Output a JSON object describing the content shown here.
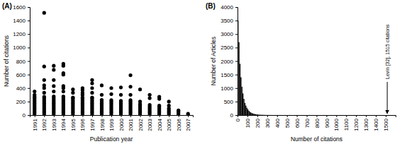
{
  "chart_data": [
    {
      "type": "scatter",
      "title": "(A)",
      "x_label": "Publication year",
      "y_label": "Number of citations",
      "color": "#000000",
      "marker": "circle",
      "xlim": [
        1990.5,
        2007.5
      ],
      "xticks": [
        1991,
        1992,
        1993,
        1994,
        1995,
        1996,
        1997,
        1998,
        1999,
        2000,
        2001,
        2002,
        2003,
        2004,
        2005,
        2006,
        2007
      ],
      "ylim": [
        0,
        1600
      ],
      "yticks": [
        0,
        200,
        400,
        600,
        800,
        1000,
        1200,
        1400,
        1600
      ],
      "x": [
        1991,
        1991,
        1991,
        1991,
        1991,
        1991,
        1991,
        1991,
        1991,
        1991,
        1991,
        1991,
        1991,
        1991,
        1992,
        1992,
        1992,
        1992,
        1992,
        1992,
        1992,
        1992,
        1992,
        1992,
        1992,
        1992,
        1992,
        1992,
        1992,
        1992,
        1992,
        1992,
        1993,
        1993,
        1993,
        1993,
        1993,
        1993,
        1993,
        1993,
        1993,
        1993,
        1993,
        1993,
        1993,
        1993,
        1993,
        1993,
        1993,
        1994,
        1994,
        1994,
        1994,
        1994,
        1994,
        1994,
        1994,
        1994,
        1994,
        1994,
        1994,
        1994,
        1994,
        1994,
        1994,
        1994,
        1994,
        1994,
        1995,
        1995,
        1995,
        1995,
        1995,
        1995,
        1995,
        1995,
        1995,
        1995,
        1995,
        1995,
        1995,
        1995,
        1996,
        1996,
        1996,
        1996,
        1996,
        1996,
        1996,
        1996,
        1996,
        1996,
        1996,
        1996,
        1996,
        1996,
        1996,
        1996,
        1997,
        1997,
        1997,
        1997,
        1997,
        1997,
        1997,
        1997,
        1997,
        1997,
        1997,
        1997,
        1997,
        1997,
        1997,
        1997,
        1998,
        1998,
        1998,
        1998,
        1998,
        1998,
        1998,
        1998,
        1998,
        1998,
        1998,
        1998,
        1999,
        1999,
        1999,
        1999,
        1999,
        1999,
        1999,
        1999,
        1999,
        1999,
        1999,
        1999,
        2000,
        2000,
        2000,
        2000,
        2000,
        2000,
        2000,
        2000,
        2000,
        2000,
        2000,
        2000,
        2001,
        2001,
        2001,
        2001,
        2001,
        2001,
        2001,
        2001,
        2001,
        2001,
        2001,
        2001,
        2001,
        2002,
        2002,
        2002,
        2002,
        2002,
        2002,
        2002,
        2002,
        2002,
        2002,
        2003,
        2003,
        2003,
        2003,
        2003,
        2003,
        2003,
        2003,
        2003,
        2004,
        2004,
        2004,
        2004,
        2004,
        2004,
        2004,
        2004,
        2004,
        2005,
        2005,
        2005,
        2005,
        2005,
        2005,
        2005,
        2006,
        2006,
        2006,
        2006,
        2007,
        2007
      ],
      "values": [
        0,
        25,
        50,
        75,
        100,
        125,
        150,
        175,
        200,
        225,
        250,
        270,
        300,
        350,
        0,
        25,
        50,
        75,
        100,
        125,
        150,
        175,
        200,
        225,
        250,
        270,
        330,
        400,
        440,
        520,
        720,
        1515,
        0,
        25,
        50,
        75,
        100,
        125,
        150,
        175,
        200,
        225,
        250,
        275,
        350,
        430,
        520,
        670,
        730,
        0,
        25,
        50,
        75,
        100,
        125,
        150,
        175,
        200,
        225,
        250,
        275,
        350,
        400,
        430,
        600,
        620,
        730,
        760,
        0,
        25,
        50,
        75,
        100,
        125,
        150,
        175,
        200,
        225,
        250,
        260,
        330,
        380,
        0,
        25,
        50,
        75,
        100,
        125,
        150,
        175,
        200,
        225,
        250,
        260,
        300,
        330,
        370,
        400,
        0,
        25,
        50,
        75,
        100,
        125,
        150,
        175,
        200,
        225,
        250,
        260,
        330,
        400,
        470,
        520,
        0,
        25,
        50,
        75,
        100,
        125,
        150,
        175,
        200,
        225,
        300,
        440,
        0,
        25,
        50,
        75,
        100,
        125,
        150,
        175,
        200,
        220,
        310,
        400,
        0,
        25,
        50,
        75,
        100,
        125,
        150,
        175,
        200,
        210,
        300,
        410,
        0,
        25,
        50,
        75,
        100,
        125,
        150,
        175,
        200,
        220,
        300,
        420,
        590,
        0,
        25,
        50,
        75,
        100,
        125,
        150,
        160,
        200,
        380,
        0,
        25,
        50,
        75,
        100,
        125,
        150,
        250,
        300,
        0,
        25,
        50,
        75,
        100,
        125,
        140,
        240,
        270,
        0,
        25,
        50,
        75,
        100,
        140,
        200,
        0,
        25,
        50,
        70,
        0,
        20
      ]
    },
    {
      "type": "histogram",
      "title": "(B)",
      "x_label": "Number of citations",
      "y_label": "Number of Articles",
      "color": "#000000",
      "xlim": [
        0,
        1600
      ],
      "xticks": [
        0,
        100,
        200,
        300,
        400,
        500,
        600,
        700,
        800,
        900,
        1000,
        1100,
        1200,
        1300,
        1400,
        1500
      ],
      "ylim": [
        0,
        4000
      ],
      "yticks": [
        0,
        500,
        1000,
        1500,
        2000,
        2500,
        3000,
        3500,
        4000
      ],
      "bins": [
        0,
        10,
        20,
        30,
        40,
        50,
        60,
        70,
        80,
        90,
        100,
        110,
        120,
        130,
        140,
        150,
        160,
        170,
        180,
        190,
        200,
        210,
        220,
        230,
        240,
        250,
        260,
        270,
        280,
        290,
        300,
        310,
        320,
        330,
        340,
        350,
        360,
        370,
        380,
        390,
        400,
        410,
        420,
        430,
        440,
        450,
        460,
        470,
        480,
        490,
        500,
        510,
        520,
        530,
        540,
        550,
        560,
        570,
        580,
        590,
        600,
        610,
        620,
        630,
        640,
        650,
        660,
        670,
        680,
        690,
        700,
        710,
        720,
        730,
        740,
        750,
        760,
        770,
        1510,
        1520
      ],
      "values": [
        3500,
        2700,
        1900,
        1400,
        1050,
        800,
        600,
        450,
        350,
        270,
        210,
        160,
        120,
        95,
        75,
        60,
        48,
        38,
        30,
        24,
        19,
        15,
        12,
        10,
        8,
        7,
        6,
        5,
        3,
        3,
        3,
        2,
        2,
        2,
        1,
        1,
        0,
        1,
        1,
        0,
        2,
        1,
        1,
        1,
        1,
        0,
        0,
        1,
        0,
        0,
        0,
        0,
        2,
        0,
        0,
        0,
        0,
        0,
        0,
        1,
        1,
        0,
        1,
        0,
        0,
        0,
        0,
        1,
        0,
        0,
        0,
        0,
        1,
        2,
        0,
        0,
        1,
        0,
        1
      ],
      "annotations": [
        {
          "text": "Levin [32], 1515 citations",
          "x": 1515
        }
      ]
    }
  ]
}
